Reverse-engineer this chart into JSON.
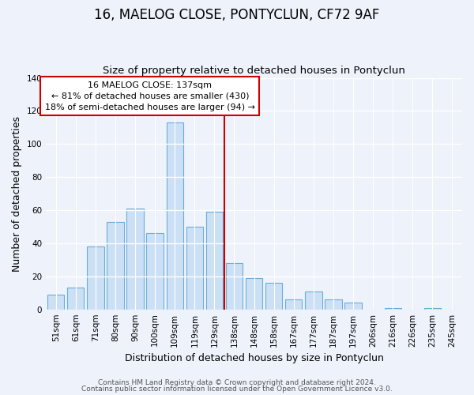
{
  "title": "16, MAELOG CLOSE, PONTYCLUN, CF72 9AF",
  "subtitle": "Size of property relative to detached houses in Pontyclun",
  "xlabel": "Distribution of detached houses by size in Pontyclun",
  "ylabel": "Number of detached properties",
  "bar_labels": [
    "51sqm",
    "61sqm",
    "71sqm",
    "80sqm",
    "90sqm",
    "100sqm",
    "109sqm",
    "119sqm",
    "129sqm",
    "138sqm",
    "148sqm",
    "158sqm",
    "167sqm",
    "177sqm",
    "187sqm",
    "197sqm",
    "206sqm",
    "216sqm",
    "226sqm",
    "235sqm",
    "245sqm"
  ],
  "bar_heights": [
    9,
    13,
    38,
    53,
    61,
    46,
    113,
    50,
    59,
    28,
    19,
    16,
    6,
    11,
    6,
    4,
    0,
    1,
    0,
    1,
    0
  ],
  "bar_color": "#cce0f5",
  "bar_edge_color": "#6aaed6",
  "vline_color": "#cc0000",
  "ylim": [
    0,
    140
  ],
  "yticks": [
    0,
    20,
    40,
    60,
    80,
    100,
    120,
    140
  ],
  "annotation_title": "16 MAELOG CLOSE: 137sqm",
  "annotation_line1": "← 81% of detached houses are smaller (430)",
  "annotation_line2": "18% of semi-detached houses are larger (94) →",
  "annotation_box_color": "#ffffff",
  "annotation_box_edge": "#cc0000",
  "footer1": "Contains HM Land Registry data © Crown copyright and database right 2024.",
  "footer2": "Contains public sector information licensed under the Open Government Licence v3.0.",
  "background_color": "#edf2fb",
  "grid_color": "#ffffff",
  "title_fontsize": 12,
  "subtitle_fontsize": 9.5,
  "axis_label_fontsize": 9,
  "tick_fontsize": 7.5,
  "annotation_fontsize": 8,
  "footer_fontsize": 6.5
}
